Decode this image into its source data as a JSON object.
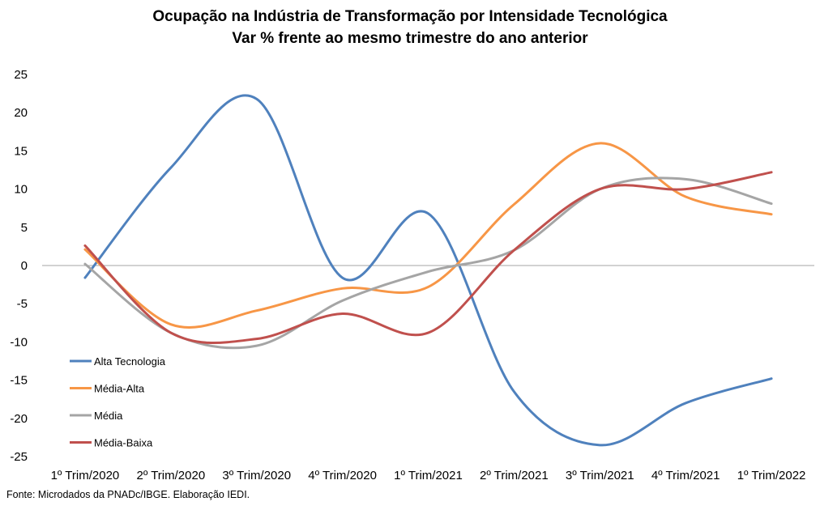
{
  "chart_data": {
    "type": "line",
    "title": "Ocupação na Indústria de Transformação por Intensidade Tecnológica",
    "subtitle": "Var % frente ao mesmo trimestre do ano anterior",
    "categories": [
      "1º Trim/2020",
      "2º Trim/2020",
      "3º Trim/2020",
      "4º Trim/2020",
      "1º Trim/2021",
      "2º Trim/2021",
      "3º Trim/2021",
      "4º Trim/2021",
      "1º Trim/2022"
    ],
    "ylim": [
      -25,
      25
    ],
    "yticks": [
      "25",
      "20",
      "15",
      "10",
      "5",
      "0",
      "-5",
      "-10",
      "-15",
      "-20",
      "-25"
    ],
    "grid": false,
    "legend_position": "lower-left",
    "series": [
      {
        "name": "Alta Tecnologia",
        "color": "#4F81BD",
        "values": [
          -1.6,
          12.8,
          21.8,
          -1.6,
          6.8,
          -16.5,
          -23.5,
          -18.0,
          -14.8
        ]
      },
      {
        "name": "Média-Alta",
        "color": "#F79646",
        "values": [
          2.1,
          -7.7,
          -5.9,
          -3.0,
          -2.8,
          8.0,
          16.0,
          9.0,
          6.7
        ]
      },
      {
        "name": "Média",
        "color": "#A5A5A5",
        "values": [
          0.2,
          -8.8,
          -10.5,
          -4.6,
          -0.8,
          2.0,
          10.0,
          11.3,
          8.1
        ]
      },
      {
        "name": "Média-Baixa",
        "color": "#C0504D",
        "values": [
          2.6,
          -8.8,
          -9.6,
          -6.3,
          -8.8,
          2.0,
          10.0,
          10.0,
          12.2
        ]
      }
    ]
  },
  "footer": {
    "source": "Fonte: Microdados da PNADc/IBGE. Elaboração IEDI."
  }
}
